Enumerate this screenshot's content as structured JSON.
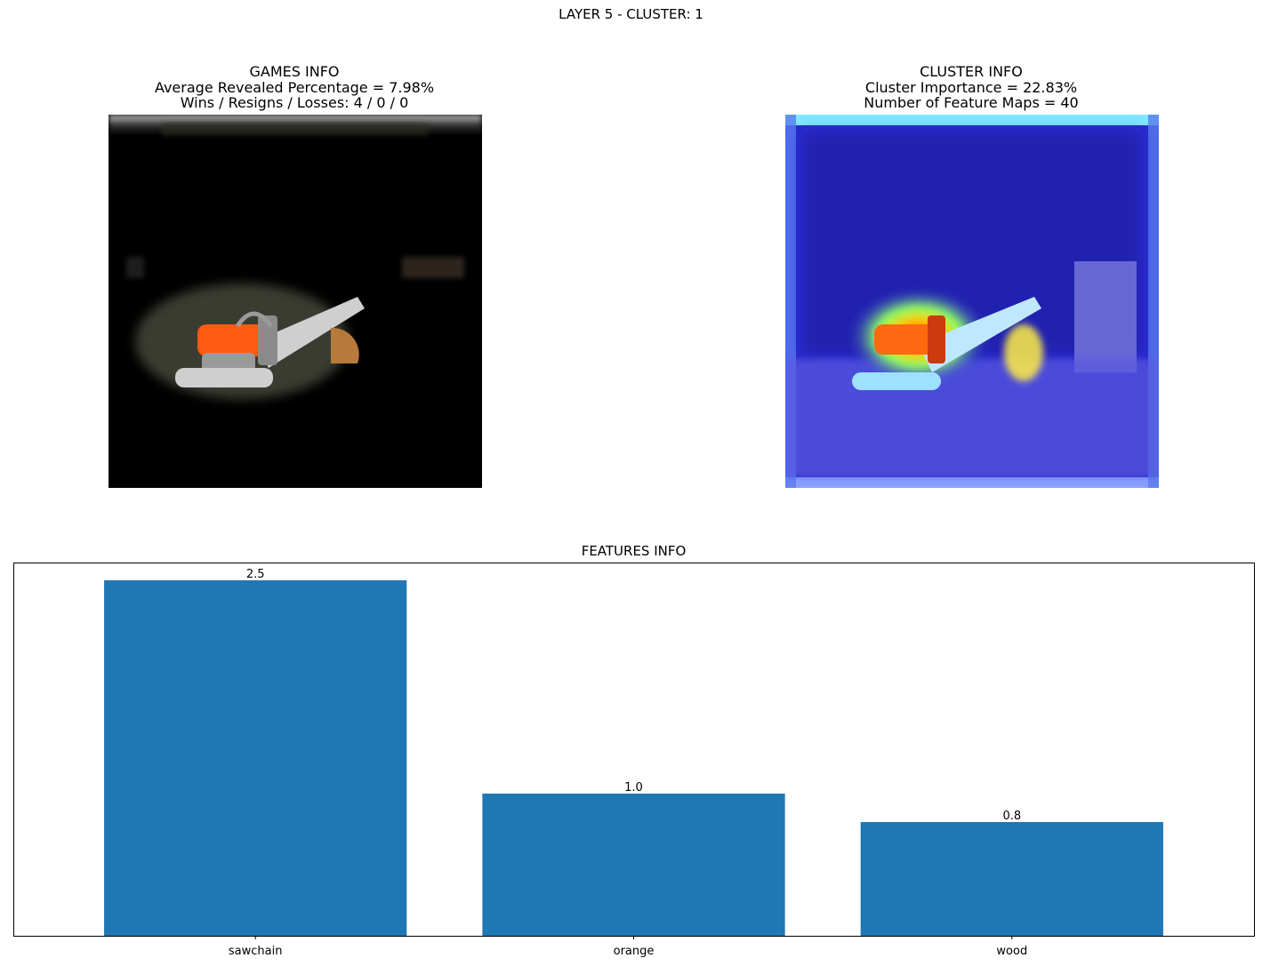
{
  "figure": {
    "suptitle": "LAYER 5 - CLUSTER: 1"
  },
  "games_info": {
    "title": "GAMES INFO",
    "line1": "Average Revealed Percentage = 7.98%",
    "line2": "Wins / Resigns / Losses: 4 / 0 / 0"
  },
  "cluster_info": {
    "title": "CLUSTER INFO",
    "line1": "Cluster Importance = 22.83%",
    "line2": "Number of Feature Maps = 40"
  },
  "chart_data": {
    "type": "bar",
    "title": "FEATURES INFO",
    "categories": [
      "sawchain",
      "orange",
      "wood"
    ],
    "values": [
      2.5,
      1.0,
      0.8
    ],
    "value_labels": [
      "2.5",
      "1.0",
      "0.8"
    ],
    "xlabel": "",
    "ylabel": "",
    "ylim": [
      0,
      2.625
    ],
    "y_axis_visible": false,
    "grid": false,
    "bar_color": "#1f77b4"
  },
  "colors": {
    "bar": "#1f77b4",
    "heatmap_base": "#2a2ad0",
    "saw_orange": "#ff5a12"
  }
}
